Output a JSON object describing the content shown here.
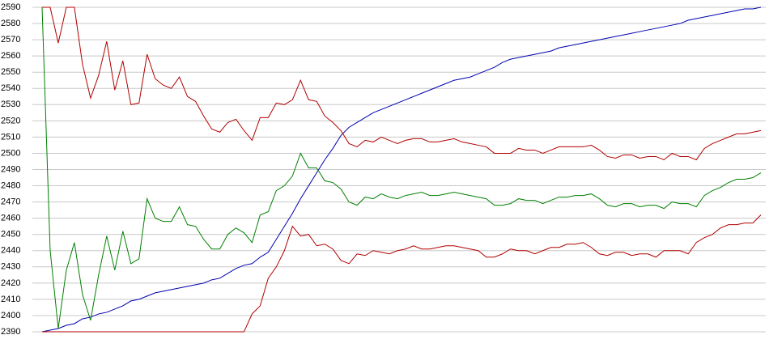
{
  "chart_data": {
    "type": "line",
    "categories": [
      null,
      null,
      null,
      null,
      null,
      null,
      null,
      null,
      null,
      null,
      null,
      null,
      null,
      null,
      null,
      null,
      null,
      null,
      null,
      null,
      null,
      null,
      null,
      null,
      null,
      null,
      null,
      null,
      null,
      null,
      null,
      null,
      null,
      null,
      null,
      null,
      null,
      null,
      null,
      null,
      null,
      null,
      null,
      null,
      null,
      null,
      null,
      null,
      null,
      null,
      null,
      null,
      null,
      null,
      null,
      null,
      null,
      null,
      null,
      null,
      null,
      null,
      null,
      null,
      null,
      null,
      null,
      null,
      null,
      null,
      null,
      null,
      null,
      null,
      null,
      null,
      null,
      null,
      null,
      null,
      null,
      null,
      null,
      null,
      null,
      null,
      null,
      null,
      null,
      null
    ],
    "series": [
      {
        "color": "#0000b0",
        "values": [
          2390,
          2391,
          2392,
          2394,
          2395,
          2398,
          2399,
          2401,
          2402,
          2404,
          2406,
          2409,
          2410,
          2412,
          2414,
          2415,
          2416,
          2417,
          2418,
          2419,
          2420,
          2422,
          2423,
          2426,
          2429,
          2431,
          2432,
          2436,
          2439,
          2447,
          2455,
          2463,
          2472,
          2480,
          2488,
          2496,
          2503,
          2511,
          2516,
          2519,
          2522,
          2525,
          2527,
          2529,
          2531,
          2533,
          2535,
          2537,
          2539,
          2541,
          2543,
          2545,
          2546,
          2547,
          2549,
          2551,
          2553,
          2556,
          2558,
          2559,
          2560,
          2561,
          2562,
          2563,
          2565,
          2566,
          2567,
          2568,
          2569,
          2570,
          2571,
          2572,
          2573,
          2574,
          2575,
          2576,
          2577,
          2578,
          2579,
          2580,
          2582,
          2583,
          2584,
          2585,
          2586,
          2587,
          2588,
          2589,
          2589,
          2590
        ]
      },
      {
        "color": "#b00000",
        "values": [
          2590,
          2590,
          2568,
          2590,
          2590,
          2555,
          2534,
          2548,
          2569,
          2539,
          2557,
          2530,
          2531,
          2561,
          2546,
          2542,
          2540,
          2547,
          2535,
          2532,
          2523,
          2515,
          2513,
          2519,
          2521,
          2514,
          2508,
          2522,
          2522,
          2531,
          2530,
          2533,
          2545,
          2533,
          2532,
          2523,
          2519,
          2514,
          2506,
          2504,
          2508,
          2507,
          2510,
          2508,
          2506,
          2508,
          2509,
          2509,
          2507,
          2507,
          2508,
          2509,
          2507,
          2506,
          2505,
          2504,
          2500,
          2500,
          2500,
          2503,
          2502,
          2502,
          2500,
          2502,
          2504,
          2504,
          2504,
          2504,
          2505,
          2502,
          2498,
          2497,
          2499,
          2499,
          2497,
          2498,
          2498,
          2496,
          2500,
          2498,
          2498,
          2496,
          2503,
          2506,
          2508,
          2510,
          2512,
          2512,
          2513,
          2514
        ]
      },
      {
        "color": "#008000",
        "values": [
          2590,
          2440,
          2392,
          2428,
          2445,
          2413,
          2397,
          2425,
          2449,
          2428,
          2452,
          2432,
          2435,
          2472,
          2460,
          2458,
          2458,
          2467,
          2456,
          2455,
          2447,
          2441,
          2441,
          2450,
          2454,
          2451,
          2445,
          2462,
          2464,
          2477,
          2480,
          2486,
          2500,
          2491,
          2491,
          2483,
          2482,
          2478,
          2470,
          2468,
          2473,
          2472,
          2475,
          2473,
          2472,
          2474,
          2475,
          2476,
          2474,
          2474,
          2475,
          2476,
          2475,
          2474,
          2473,
          2472,
          2468,
          2468,
          2469,
          2472,
          2471,
          2471,
          2469,
          2471,
          2473,
          2473,
          2474,
          2474,
          2475,
          2472,
          2468,
          2467,
          2469,
          2469,
          2467,
          2468,
          2468,
          2466,
          2470,
          2469,
          2469,
          2467,
          2474,
          2477,
          2479,
          2482,
          2484,
          2484,
          2485,
          2488
        ]
      },
      {
        "color": "#b00000",
        "values": [
          2390,
          2390,
          2390,
          2390,
          2390,
          2390,
          2390,
          2390,
          2390,
          2390,
          2390,
          2390,
          2390,
          2390,
          2390,
          2390,
          2390,
          2390,
          2390,
          2390,
          2390,
          2390,
          2390,
          2390,
          2390,
          2390,
          2401,
          2406,
          2423,
          2430,
          2440,
          2455,
          2449,
          2450,
          2443,
          2444,
          2441,
          2434,
          2432,
          2438,
          2437,
          2440,
          2439,
          2438,
          2440,
          2441,
          2443,
          2441,
          2441,
          2442,
          2443,
          2443,
          2442,
          2441,
          2440,
          2436,
          2436,
          2438,
          2441,
          2440,
          2440,
          2438,
          2440,
          2442,
          2442,
          2444,
          2444,
          2445,
          2442,
          2438,
          2437,
          2439,
          2439,
          2437,
          2438,
          2438,
          2436,
          2440,
          2440,
          2440,
          2438,
          2445,
          2448,
          2450,
          2454,
          2456,
          2456,
          2457,
          2457,
          2462
        ]
      }
    ],
    "ylim": [
      2390,
      2590
    ],
    "yticks": [
      2390,
      2400,
      2410,
      2420,
      2430,
      2440,
      2450,
      2460,
      2470,
      2480,
      2490,
      2500,
      2510,
      2520,
      2530,
      2540,
      2550,
      2560,
      2570,
      2580,
      2590
    ],
    "grid": true
  }
}
